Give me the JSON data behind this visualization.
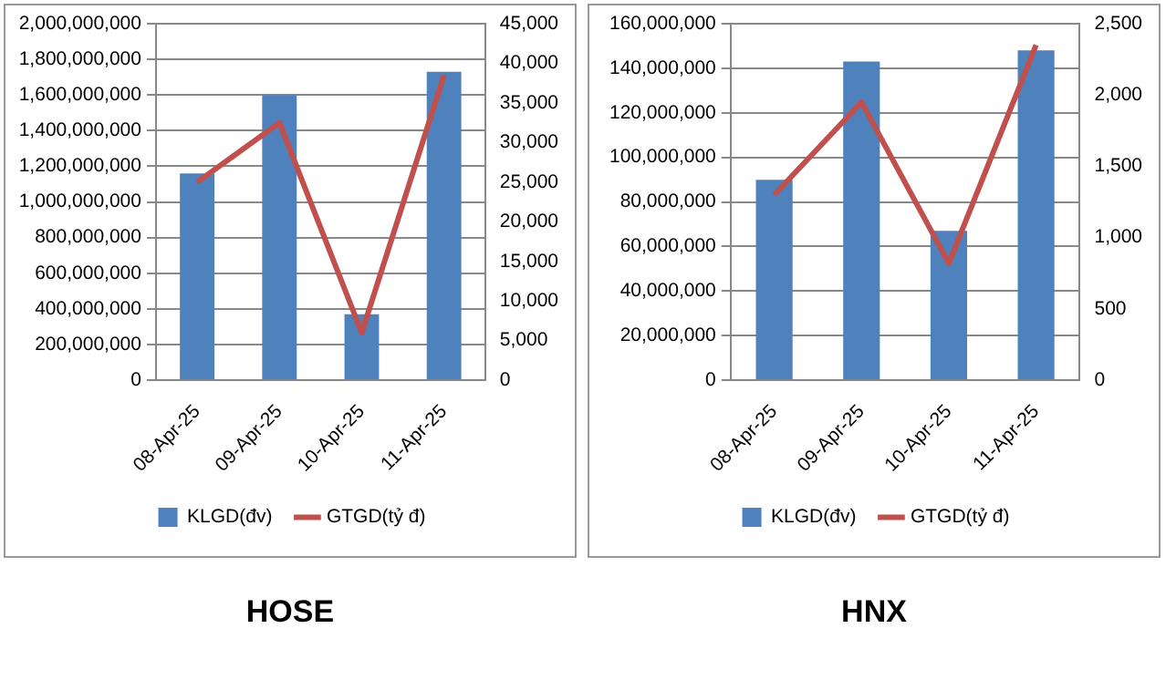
{
  "chart_data": [
    {
      "type": "bar",
      "title": "HOSE",
      "categories": [
        "08-Apr-25",
        "09-Apr-25",
        "10-Apr-25",
        "11-Apr-25"
      ],
      "series": [
        {
          "name": "KLGD(đv)",
          "color": "#4f81bd",
          "values": [
            1160000000,
            1600000000,
            370000000,
            1730000000
          ]
        },
        {
          "name": "GTGD(tỷ đ)",
          "type": "line",
          "axis": "y2",
          "color": "#c0504d",
          "values": [
            25000,
            32500,
            6000,
            38500
          ]
        }
      ],
      "ylim": [
        0,
        2000000000
      ],
      "yticks": [
        0,
        {
          "value": 200000000,
          "label": "200,000,000"
        },
        {
          "value": 400000000,
          "label": "400,000,000"
        },
        {
          "value": 600000000,
          "label": "600,000,000"
        },
        {
          "value": 800000000,
          "label": "800,000,000"
        },
        {
          "value": 1000000000,
          "label": "1,000,000,000"
        },
        {
          "value": 1200000000,
          "label": "1,200,000,000"
        },
        {
          "value": 1400000000,
          "label": "1,400,000,000"
        },
        {
          "value": 1600000000,
          "label": "1,600,000,000"
        },
        {
          "value": 1800000000,
          "label": "1,800,000,000"
        },
        {
          "value": 2000000000,
          "label": "2,000,000,000"
        }
      ],
      "y2lim": [
        0,
        45000
      ],
      "y2ticks": [
        0,
        {
          "value": 5000,
          "label": "5,000"
        },
        {
          "value": 10000,
          "label": "10,000"
        },
        {
          "value": 15000,
          "label": "15,000"
        },
        {
          "value": 20000,
          "label": "20,000"
        },
        {
          "value": 25000,
          "label": "25,000"
        },
        {
          "value": 30000,
          "label": "30,000"
        },
        {
          "value": 35000,
          "label": "35,000"
        },
        {
          "value": 40000,
          "label": "40,000"
        },
        {
          "value": 45000,
          "label": "45,000"
        }
      ],
      "grid": "y",
      "legend": "bottom",
      "marker": "none",
      "line_style": "solid"
    },
    {
      "type": "bar",
      "title": "HNX",
      "categories": [
        "08-Apr-25",
        "09-Apr-25",
        "10-Apr-25",
        "11-Apr-25"
      ],
      "series": [
        {
          "name": "KLGD(đv)",
          "color": "#4f81bd",
          "values": [
            90000000,
            143000000,
            67000000,
            148000000
          ]
        },
        {
          "name": "GTGD(tỷ đ)",
          "type": "line",
          "axis": "y2",
          "color": "#c0504d",
          "values": [
            1300,
            1950,
            820,
            2350
          ]
        }
      ],
      "ylim": [
        0,
        160000000
      ],
      "yticks": [
        0,
        {
          "value": 20000000,
          "label": "20,000,000"
        },
        {
          "value": 40000000,
          "label": "40,000,000"
        },
        {
          "value": 60000000,
          "label": "60,000,000"
        },
        {
          "value": 80000000,
          "label": "80,000,000"
        },
        {
          "value": 100000000,
          "label": "100,000,000"
        },
        {
          "value": 120000000,
          "label": "120,000,000"
        },
        {
          "value": 140000000,
          "label": "140,000,000"
        },
        {
          "value": 160000000,
          "label": "160,000,000"
        }
      ],
      "y2lim": [
        0,
        2500
      ],
      "y2ticks": [
        0,
        {
          "value": 500,
          "label": "500"
        },
        {
          "value": 1000,
          "label": "1,000"
        },
        {
          "value": 1500,
          "label": "1,500"
        },
        {
          "value": 2000,
          "label": "2,000"
        },
        {
          "value": 2500,
          "label": "2,500"
        }
      ],
      "grid": "y",
      "legend": "bottom",
      "marker": "none",
      "line_style": "solid"
    }
  ]
}
